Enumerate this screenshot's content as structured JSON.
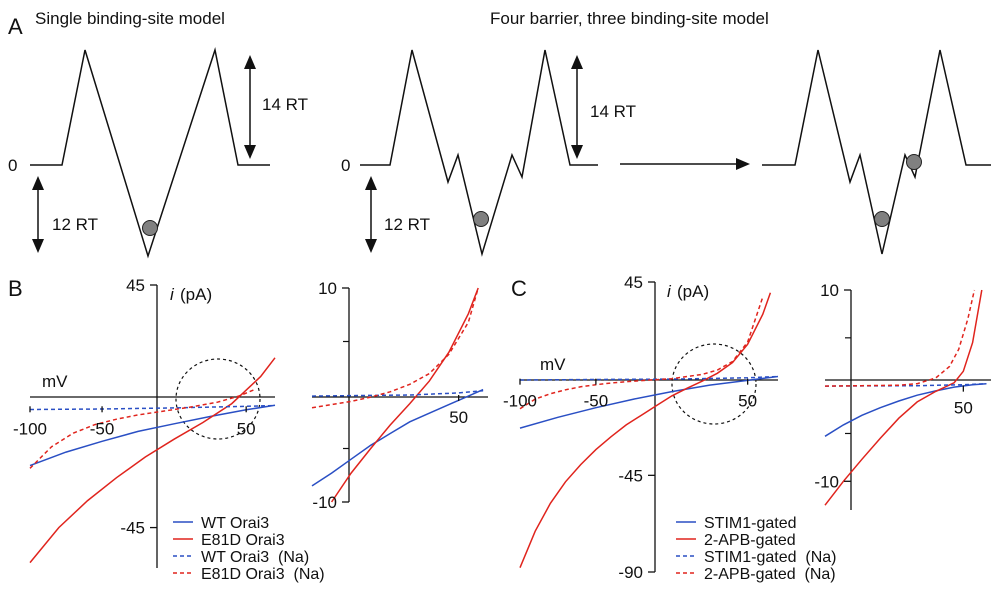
{
  "colors": {
    "blue": "#2a4fc4",
    "red": "#e0241d",
    "ink": "#111111",
    "ion": "#808080"
  },
  "panel_a": {
    "letter": "A",
    "left_title": "Single binding-site model",
    "right_title": "Four barrier, three binding-site model",
    "zero_label_left": "0",
    "zero_label_right": "0",
    "barrier_label_left": "14 RT",
    "well_label_left": "12 RT",
    "barrier_label_right": "14 RT",
    "well_label_right": "12 RT"
  },
  "chart_data": [
    {
      "panel": "B",
      "type": "line",
      "letter": "B",
      "ylabel_italic": "i",
      "ylabel": "(pA)",
      "xlabel": "mV",
      "xlim": [
        -100,
        70
      ],
      "ylim": [
        -60,
        45
      ],
      "xticks": [
        -100,
        -50,
        50
      ],
      "xtick_labels": [
        "-100",
        "-50",
        "50"
      ],
      "yticks": [
        -45,
        45
      ],
      "ytick_labels": [
        "-45",
        "45"
      ],
      "series": [
        {
          "name": "WT Orai3",
          "style": "solid",
          "color": "blue",
          "x": [
            -100,
            -75,
            -50,
            -25,
            0,
            25,
            50,
            70
          ],
          "y": [
            -22,
            -17,
            -13,
            -9.3,
            -6.5,
            -3.8,
            -1.3,
            0.4
          ]
        },
        {
          "name": "E81D Orai3",
          "style": "solid",
          "color": "red",
          "x": [
            -100,
            -80,
            -60,
            -40,
            -20,
            0,
            20,
            40,
            60,
            70
          ],
          "y": [
            -58,
            -45,
            -35,
            -26.5,
            -18.8,
            -12.2,
            -6,
            1,
            11,
            18
          ]
        },
        {
          "name": "WT Orai3  (Na)",
          "style": "dashed",
          "color": "blue",
          "x": [
            -100,
            -50,
            0,
            50,
            70
          ],
          "y": [
            -1.2,
            -1,
            -0.6,
            0,
            0.3
          ]
        },
        {
          "name": "E81D Orai3  (Na)",
          "style": "dashed",
          "color": "red",
          "x": [
            -100,
            -85,
            -70,
            -55,
            -40,
            -25,
            -10,
            10,
            30,
            45,
            55
          ],
          "y": [
            -23,
            -15,
            -10,
            -6.8,
            -4.8,
            -3.2,
            -2,
            -0.4,
            1.5,
            3.8,
            6
          ]
        }
      ],
      "legend": [
        {
          "label": "WT Orai3",
          "color": "blue",
          "style": "solid"
        },
        {
          "label": "E81D Orai3",
          "color": "red",
          "style": "solid"
        },
        {
          "label": "WT Orai3  (Na)",
          "color": "blue",
          "style": "dashed"
        },
        {
          "label": "E81D Orai3  (Na)",
          "color": "red",
          "style": "dashed"
        }
      ],
      "legend_position": "bottom-right",
      "annotation": "dashed circle around reversal potential region"
    },
    {
      "panel": "B-inset",
      "type": "line",
      "xlim": [
        -100,
        80
      ],
      "ylim": [
        -10,
        10
      ],
      "xticks": [
        50
      ],
      "xtick_labels": [
        "50"
      ],
      "yticks": [
        -10,
        10
      ],
      "ytick_labels": [
        "-10",
        "10"
      ],
      "series": [
        {
          "name": "WT Orai3",
          "style": "solid",
          "color": "blue",
          "x": [
            -100,
            -80,
            -60,
            -40,
            -20,
            0,
            20,
            40,
            60,
            75
          ],
          "y": [
            -8.5,
            -7.3,
            -6,
            -4.7,
            -3.6,
            -2.5,
            -1.7,
            -0.9,
            -0.1,
            0.5
          ]
        },
        {
          "name": "E81D Orai3",
          "style": "solid",
          "color": "red",
          "x": [
            -80,
            -60,
            -40,
            -20,
            0,
            20,
            40,
            60,
            70
          ],
          "y": [
            -10,
            -7.3,
            -5,
            -2.8,
            -0.8,
            1.3,
            4,
            7.6,
            10
          ]
        },
        {
          "name": "WT Orai3  (Na)",
          "style": "dashed",
          "color": "blue",
          "x": [
            -100,
            -50,
            0,
            50,
            75
          ],
          "y": [
            -0.1,
            -0.05,
            0,
            0.2,
            0.4
          ]
        },
        {
          "name": "E81D Orai3  (Na)",
          "style": "dashed",
          "color": "red",
          "x": [
            -100,
            -80,
            -60,
            -40,
            -20,
            0,
            20,
            40,
            60,
            70
          ],
          "y": [
            -1.2,
            -0.9,
            -0.6,
            -0.2,
            0.3,
            1,
            2,
            3.8,
            6.8,
            10
          ]
        }
      ]
    },
    {
      "panel": "C",
      "type": "line",
      "letter": "C",
      "ylabel_italic": "i",
      "ylabel": "(pA)",
      "xlabel": "mV",
      "xlim": [
        -100,
        70
      ],
      "ylim": [
        -90,
        45
      ],
      "xticks": [
        -100,
        -50,
        50
      ],
      "xtick_labels": [
        "-100",
        "-50",
        "50"
      ],
      "yticks": [
        -90,
        -45,
        45
      ],
      "ytick_labels": [
        "-90",
        "-45",
        "45"
      ],
      "series": [
        {
          "name": "STIM1-gated",
          "style": "solid",
          "color": "blue",
          "x": [
            -100,
            -75,
            -50,
            -25,
            0,
            25,
            50,
            70
          ],
          "y": [
            -23,
            -18,
            -13.5,
            -9.5,
            -6,
            -3,
            -0.8,
            1
          ]
        },
        {
          "name": "2-APB-gated",
          "style": "solid",
          "color": "red",
          "x": [
            -100,
            -90,
            -80,
            -70,
            -60,
            -50,
            -40,
            -30,
            -20,
            -10,
            0,
            10,
            20,
            30,
            40,
            50,
            60,
            65
          ],
          "y": [
            -88,
            -71,
            -58,
            -48,
            -40,
            -33,
            -27,
            -21.5,
            -17,
            -12.5,
            -8,
            -4.5,
            -1.2,
            2.5,
            7.5,
            16,
            30,
            40
          ]
        },
        {
          "name": "STIM1-gated  (Na)",
          "style": "dashed",
          "color": "blue",
          "x": [
            -100,
            -50,
            0,
            50,
            70
          ],
          "y": [
            -0.6,
            -0.4,
            -0.2,
            0.4,
            1
          ]
        },
        {
          "name": "2-APB-gated  (Na)",
          "style": "dashed",
          "color": "red",
          "x": [
            -100,
            -90,
            -80,
            -70,
            -60,
            -50,
            -40,
            -30,
            -20,
            0,
            20,
            30,
            40,
            50,
            60
          ],
          "y": [
            -14,
            -9.5,
            -7,
            -5.2,
            -3.8,
            -2.8,
            -2,
            -1.4,
            -0.9,
            0,
            2,
            4,
            8,
            17,
            38
          ]
        }
      ],
      "legend": [
        {
          "label": "STIM1-gated",
          "color": "blue",
          "style": "solid"
        },
        {
          "label": "2-APB-gated",
          "color": "red",
          "style": "solid"
        },
        {
          "label": "STIM1-gated  (Na)",
          "color": "blue",
          "style": "dashed"
        },
        {
          "label": "2-APB-gated  (Na)",
          "color": "red",
          "style": "dashed"
        }
      ],
      "legend_position": "bottom-right",
      "annotation": "dashed circle around reversal potential region"
    },
    {
      "panel": "C-inset",
      "type": "line",
      "xlim": [
        -100,
        80
      ],
      "ylim": [
        -13,
        10
      ],
      "xticks": [
        50
      ],
      "xtick_labels": [
        "50"
      ],
      "yticks": [
        -10,
        10
      ],
      "ytick_labels": [
        "-10",
        "10"
      ],
      "series": [
        {
          "name": "STIM1-gated",
          "style": "solid",
          "color": "blue",
          "x": [
            -100,
            -80,
            -60,
            -40,
            -20,
            0,
            20,
            40,
            60,
            75
          ],
          "y": [
            -5.3,
            -4.1,
            -3.1,
            -2.3,
            -1.6,
            -1,
            -0.55,
            -0.15,
            0.1,
            0.2
          ]
        },
        {
          "name": "2-APB-gated",
          "style": "solid",
          "color": "red",
          "x": [
            -100,
            -80,
            -60,
            -40,
            -20,
            0,
            20,
            40,
            50,
            60,
            70
          ],
          "y": [
            -12.5,
            -10,
            -7.7,
            -5.5,
            -3.4,
            -1.7,
            -0.6,
            0.3,
            1.5,
            4.5,
            10
          ]
        },
        {
          "name": "STIM1-gated  (Na)",
          "style": "dashed",
          "color": "blue",
          "x": [
            -100,
            -50,
            0,
            50,
            75
          ],
          "y": [
            -0.05,
            -0.03,
            0,
            0.1,
            0.2
          ]
        },
        {
          "name": "2-APB-gated  (Na)",
          "style": "dashed",
          "color": "red",
          "x": [
            -100,
            -60,
            -20,
            0,
            20,
            35,
            45,
            55,
            62
          ],
          "y": [
            -0.05,
            0,
            0.05,
            0.2,
            0.8,
            2,
            3.8,
            7,
            10
          ]
        }
      ]
    }
  ]
}
